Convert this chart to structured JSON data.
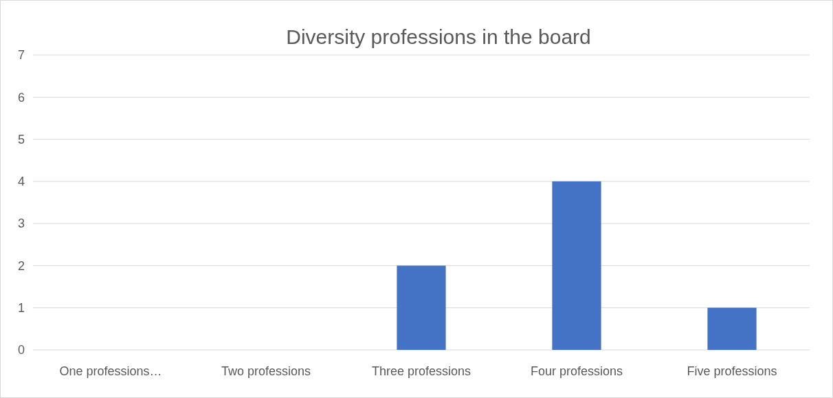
{
  "chart_data": {
    "type": "bar",
    "title": "Diversity professions in the board",
    "categories": [
      "One professions…",
      "Two professions",
      "Three professions",
      "Four professions",
      "Five professions"
    ],
    "values": [
      0,
      0,
      2,
      4,
      1
    ],
    "color": "#4472c4",
    "ylim": [
      0,
      7
    ],
    "yticks": [
      0,
      1,
      2,
      3,
      4,
      5,
      6,
      7
    ],
    "grid": "y"
  }
}
